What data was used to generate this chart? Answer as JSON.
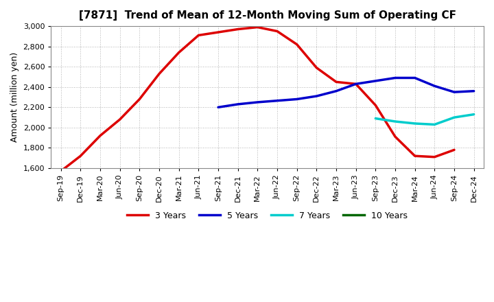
{
  "title": "[7871]  Trend of Mean of 12-Month Moving Sum of Operating CF",
  "ylabel": "Amount (million yen)",
  "background_color": "#ffffff",
  "grid_color": "#aaaaaa",
  "ylim": [
    1600,
    3000
  ],
  "yticks": [
    1600,
    1800,
    2000,
    2200,
    2400,
    2600,
    2800,
    3000
  ],
  "xtick_labels": [
    "Sep-19",
    "Dec-19",
    "Mar-20",
    "Jun-20",
    "Sep-20",
    "Dec-20",
    "Mar-21",
    "Jun-21",
    "Sep-21",
    "Dec-21",
    "Mar-22",
    "Jun-22",
    "Sep-22",
    "Dec-22",
    "Mar-23",
    "Jun-23",
    "Sep-23",
    "Dec-23",
    "Mar-24",
    "Jun-24",
    "Sep-24",
    "Dec-24"
  ],
  "series": {
    "3 Years": {
      "color": "#dd0000",
      "linewidth": 2.5,
      "x": [
        "Sep-19",
        "Dec-19",
        "Mar-20",
        "Jun-20",
        "Sep-20",
        "Dec-20",
        "Mar-21",
        "Jun-21",
        "Sep-21",
        "Dec-21",
        "Mar-22",
        "Jun-22",
        "Sep-22",
        "Dec-22",
        "Mar-23",
        "Jun-23",
        "Sep-23",
        "Dec-23",
        "Mar-24",
        "Jun-24",
        "Sep-24"
      ],
      "y": [
        1570,
        1720,
        1920,
        2080,
        2280,
        2530,
        2740,
        2910,
        2940,
        2970,
        2990,
        2950,
        2820,
        2590,
        2450,
        2430,
        2220,
        1910,
        1720,
        1710,
        1780
      ]
    },
    "5 Years": {
      "color": "#0000cc",
      "linewidth": 2.5,
      "x": [
        "Sep-21",
        "Dec-21",
        "Mar-22",
        "Jun-22",
        "Sep-22",
        "Dec-22",
        "Mar-23",
        "Jun-23",
        "Sep-23",
        "Dec-23",
        "Mar-24",
        "Jun-24",
        "Sep-24",
        "Dec-24"
      ],
      "y": [
        2200,
        2230,
        2250,
        2265,
        2280,
        2310,
        2360,
        2430,
        2460,
        2490,
        2490,
        2410,
        2350,
        2360
      ]
    },
    "7 Years": {
      "color": "#00cccc",
      "linewidth": 2.5,
      "x": [
        "Sep-23",
        "Dec-23",
        "Mar-24",
        "Jun-24",
        "Sep-24",
        "Dec-24"
      ],
      "y": [
        2090,
        2060,
        2040,
        2030,
        2100,
        2130
      ]
    },
    "10 Years": {
      "color": "#006600",
      "linewidth": 2.5,
      "x": [],
      "y": []
    }
  },
  "legend_labels": [
    "3 Years",
    "5 Years",
    "7 Years",
    "10 Years"
  ],
  "legend_colors": [
    "#dd0000",
    "#0000cc",
    "#00cccc",
    "#006600"
  ]
}
